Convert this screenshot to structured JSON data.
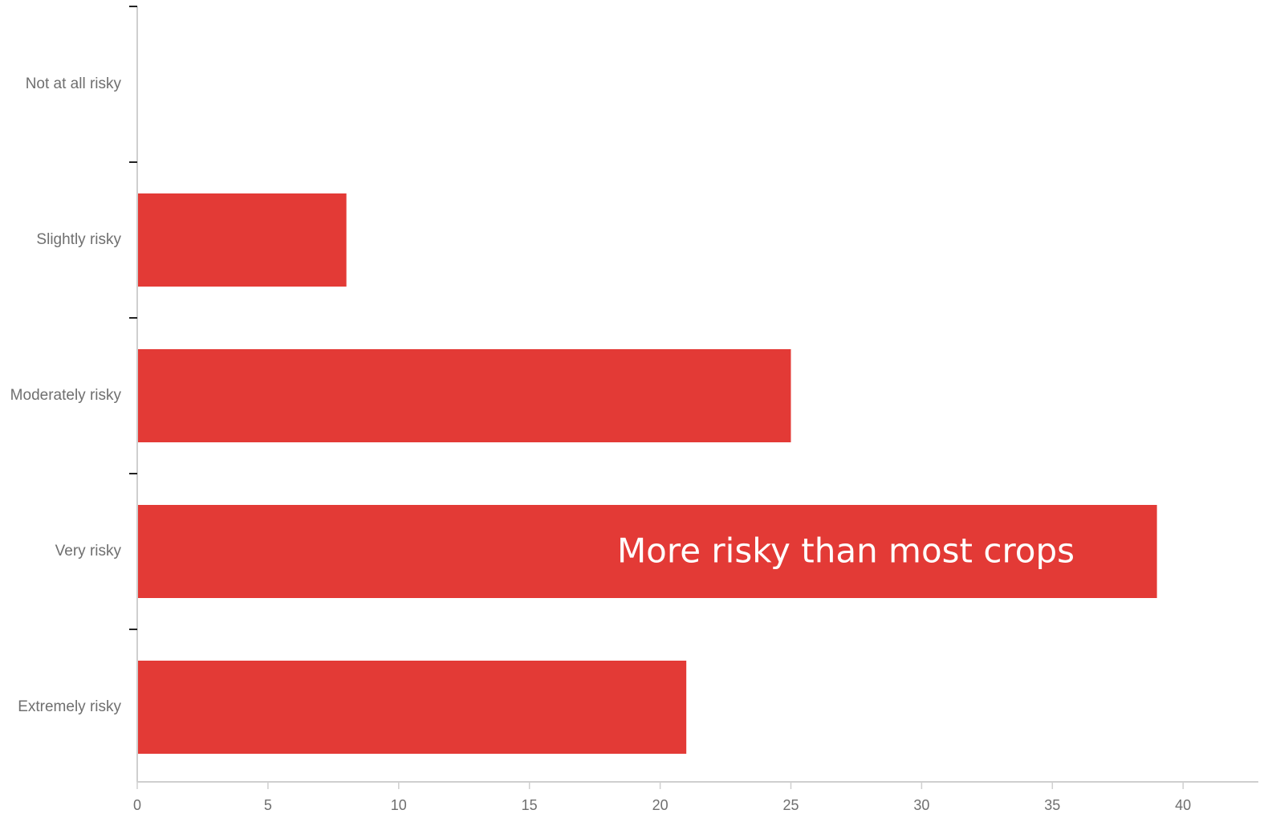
{
  "chart_data": {
    "type": "bar",
    "orientation": "horizontal",
    "categories": [
      "Not at all risky",
      "Slightly risky",
      "Moderately risky",
      "Very risky",
      "Extremely risky"
    ],
    "values": [
      0,
      8,
      25,
      39,
      21
    ],
    "xlim": [
      0,
      43
    ],
    "x_ticks": [
      0,
      5,
      10,
      15,
      20,
      25,
      30,
      35,
      40
    ],
    "bar_color": "#e33a36",
    "grid": false,
    "annotation": {
      "text": "More risky than most crops",
      "category": "Very risky"
    }
  }
}
